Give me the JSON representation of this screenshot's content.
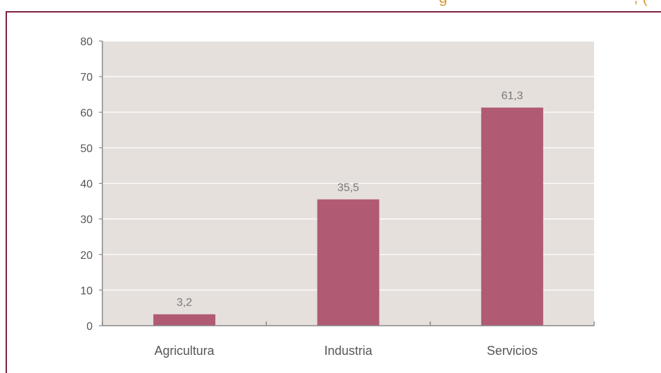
{
  "header": {
    "title_fragment": "g",
    "title_fragment_right": ", ("
  },
  "colors": {
    "frame": "#7d1f3f",
    "title_text": "#d89a3a",
    "plot_background": "#e6e0dc",
    "bar": "#b05a73",
    "gridline": "#ffffff",
    "axis": "#888888",
    "text": "#555555"
  },
  "chart_data": {
    "type": "bar",
    "categories": [
      "Agricultura",
      "Industria",
      "Servicios"
    ],
    "values": [
      3.2,
      35.5,
      61.3
    ],
    "value_labels": [
      "3,2",
      "35,5",
      "61,3"
    ],
    "ylim": [
      0,
      80
    ],
    "yticks": [
      0,
      10,
      20,
      30,
      40,
      50,
      60,
      70,
      80
    ],
    "title": "",
    "xlabel": "",
    "ylabel": "",
    "grid": true,
    "legend": "none"
  }
}
